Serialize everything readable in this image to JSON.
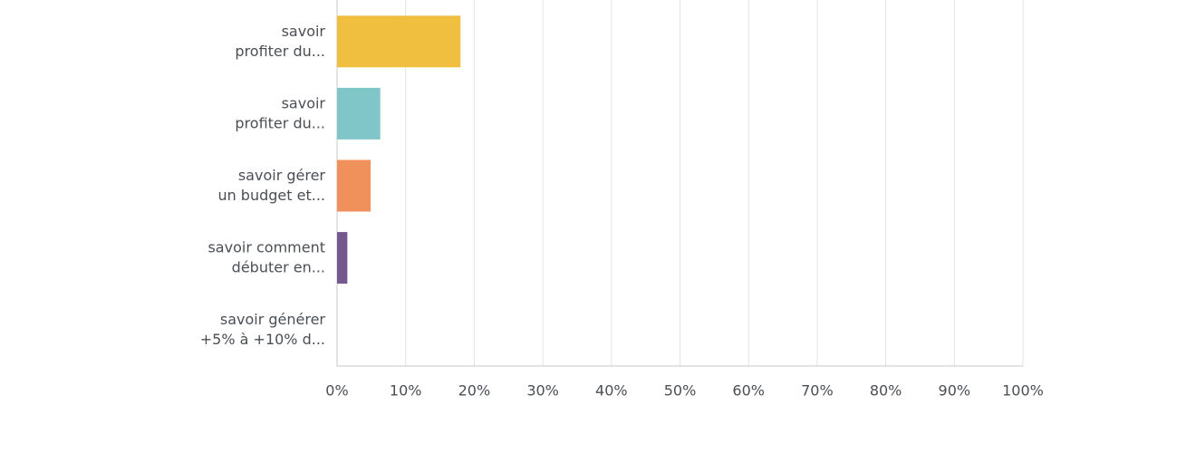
{
  "chart_data": {
    "type": "hbar",
    "categories": [
      "savoir\nprofiter du...",
      "savoir\nprofiter du...",
      "savoir gérer\nun budget et...",
      "savoir comment\ndébuter en...",
      "savoir générer\n+5% à +10% d..."
    ],
    "values": [
      18,
      6.3,
      4.9,
      1.5,
      0
    ],
    "colors": [
      "#f0bf40",
      "#80c5c8",
      "#f0905a",
      "#74598e",
      "#9fb857"
    ],
    "xlim": [
      0,
      100
    ],
    "xticks": [
      {
        "value": 0,
        "label": "0%"
      },
      {
        "value": 10,
        "label": "10%"
      },
      {
        "value": 20,
        "label": "20%"
      },
      {
        "value": 30,
        "label": "30%"
      },
      {
        "value": 40,
        "label": "40%"
      },
      {
        "value": 50,
        "label": "50%"
      },
      {
        "value": 60,
        "label": "60%"
      },
      {
        "value": 70,
        "label": "70%"
      },
      {
        "value": 80,
        "label": "80%"
      },
      {
        "value": 90,
        "label": "90%"
      },
      {
        "value": 100,
        "label": "100%"
      }
    ],
    "grid": true
  }
}
